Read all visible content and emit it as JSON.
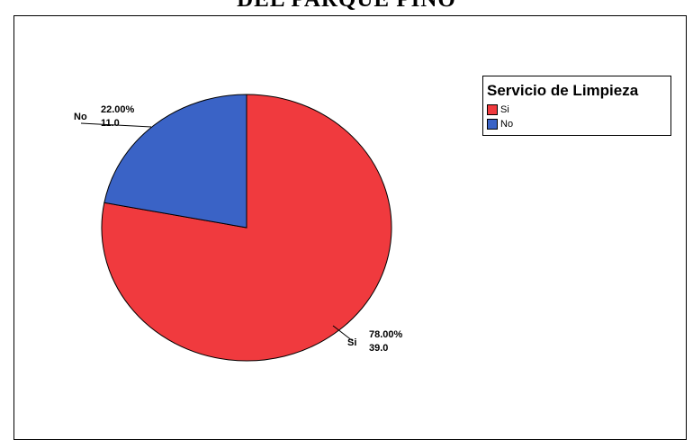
{
  "page": {
    "title": "DEL PARQUE PINO"
  },
  "chart_data": {
    "type": "pie",
    "title": "",
    "legend": {
      "title": "Servicio de Limpieza",
      "position": "top-right"
    },
    "slices": [
      {
        "label": "Si",
        "value": 39.0,
        "percent": "78.00%",
        "count": "39.0",
        "color": "#f03a3e"
      },
      {
        "label": "No",
        "value": 11.0,
        "percent": "22.00%",
        "count": "11.0",
        "color": "#3a63c6"
      }
    ],
    "start_angle": "12 o'clock",
    "direction": "clockwise"
  }
}
